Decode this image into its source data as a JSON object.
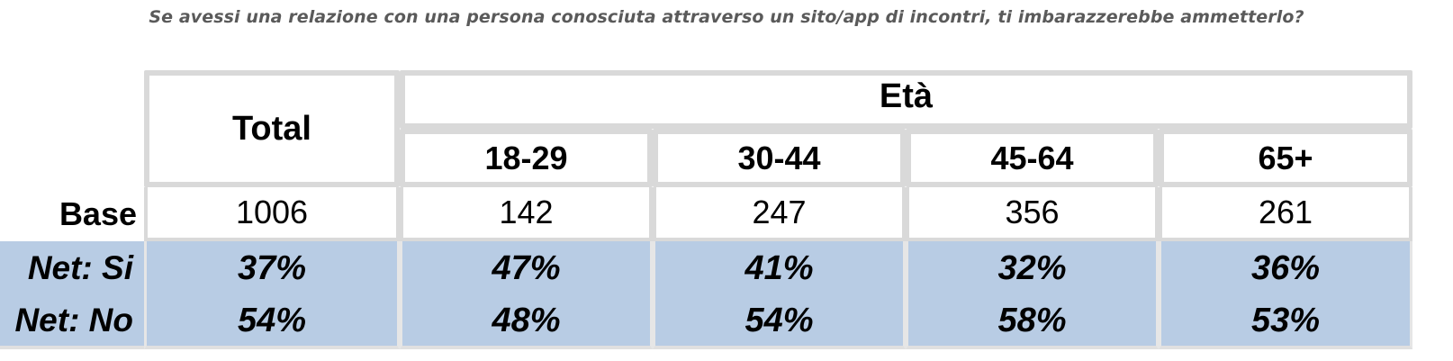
{
  "question": "Se avessi una relazione con una persona conosciuta attraverso un sito/app di incontri, ti imbarazzerebbe ammetterlo?",
  "table": {
    "total_header": "Total",
    "group_header": "Età",
    "age_groups": [
      "18-29",
      "30-44",
      "45-64",
      "65+"
    ],
    "rows": [
      {
        "label": "Base",
        "total": "1006",
        "values": [
          "142",
          "247",
          "356",
          "261"
        ]
      },
      {
        "label": "Net: Si",
        "total": "37%",
        "values": [
          "47%",
          "41%",
          "32%",
          "36%"
        ]
      },
      {
        "label": "Net: No",
        "total": "54%",
        "values": [
          "48%",
          "54%",
          "58%",
          "53%"
        ]
      }
    ]
  },
  "colors": {
    "highlight_rows": "#b8cce4",
    "borders": "#d9d9d9",
    "question_text": "#5a5a5a"
  }
}
